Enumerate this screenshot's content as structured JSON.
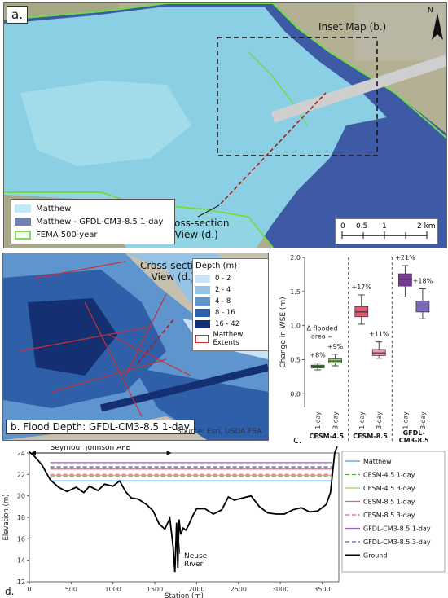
{
  "panel_a": {
    "label": "a.",
    "inset_label": "Inset Map (b.)",
    "cross_section_label_1": "Cross-section",
    "cross_section_label_2": "View (d.)",
    "north": "N",
    "legend": [
      {
        "label": "Matthew",
        "color": "#bfe9f5"
      },
      {
        "label": "Matthew - GFDL-CM3-8.5 1-day",
        "color": "#6f7fae"
      },
      {
        "label": "FEMA 500-year",
        "color": "#7be05a"
      }
    ],
    "scale": {
      "ticks": [
        "0",
        "0.5",
        "1",
        "2 km"
      ]
    },
    "map_colors": {
      "matthew": "#8fd6e8",
      "gfdl": "#3f5aa5",
      "fema": "#6fdc4c",
      "land": "#b6b395"
    }
  },
  "panel_b": {
    "label": "b. Flood Depth: GFDL-CM3-8.5 1-day",
    "cross_section_label_1": "Cross-section",
    "cross_section_label_2": "View (d.)",
    "source": "Source: Esri, USDA FSA",
    "legend_title": "Depth (m)",
    "legend": [
      {
        "label": "0 - 2",
        "color": "#c9e5f5"
      },
      {
        "label": "2 - 4",
        "color": "#94c3e6"
      },
      {
        "label": "4 - 8",
        "color": "#5f95cf"
      },
      {
        "label": "8 - 16",
        "color": "#2f5fa8"
      },
      {
        "label": "16 - 42",
        "color": "#142f72"
      },
      {
        "label": "Matthew Extents",
        "color": "#c83232"
      }
    ]
  },
  "chart_data": [
    {
      "type": "box",
      "panel_label": "c.",
      "ylabel": "Change in WSE (m)",
      "ylim": [
        -0.2,
        2.0
      ],
      "yticks": [
        "0.0",
        "0.5",
        "1.0",
        "1.5",
        "2.0"
      ],
      "annotation": [
        "Δ flooded",
        "area ="
      ],
      "groups": [
        {
          "name": "CESM-4.5",
          "boxes": [
            {
              "x": "1-day",
              "min": 0.35,
              "q1": 0.38,
              "median": 0.4,
              "q3": 0.42,
              "max": 0.45,
              "pct": "+8%",
              "color": "#4f9a3c"
            },
            {
              "x": "3-day",
              "min": 0.41,
              "q1": 0.45,
              "median": 0.48,
              "q3": 0.51,
              "max": 0.58,
              "pct": "+9%",
              "color": "#8fcf6a"
            }
          ]
        },
        {
          "name": "CESM-8.5",
          "boxes": [
            {
              "x": "1-day",
              "min": 1.02,
              "q1": 1.13,
              "median": 1.2,
              "q3": 1.28,
              "max": 1.45,
              "pct": "+17%",
              "color": "#e45c73"
            },
            {
              "x": "3-day",
              "min": 0.52,
              "q1": 0.56,
              "median": 0.6,
              "q3": 0.65,
              "max": 0.76,
              "pct": "+11%",
              "color": "#f19ab0"
            }
          ]
        },
        {
          "name": "GFDL-CM3-8.5",
          "boxes": [
            {
              "x": "1-day",
              "min": 1.42,
              "q1": 1.58,
              "median": 1.68,
              "q3": 1.76,
              "max": 1.88,
              "pct": "+21%",
              "color": "#7b3a9a"
            },
            {
              "x": "3-day",
              "min": 1.1,
              "q1": 1.2,
              "median": 1.29,
              "q3": 1.36,
              "max": 1.54,
              "pct": "+18%",
              "color": "#7a6ab8"
            }
          ]
        }
      ]
    },
    {
      "type": "line",
      "panel_label": "d.",
      "title_annotation": "Seymour Johnson AFB",
      "river_annotation": [
        "Neuse",
        "River"
      ],
      "xlabel": "Station (m)",
      "ylabel": "Elevation (m)",
      "xlim": [
        0,
        3700
      ],
      "ylim": [
        12,
        24
      ],
      "xticks": [
        0,
        500,
        1000,
        1500,
        2000,
        2500,
        3000,
        3500
      ],
      "yticks": [
        12,
        14,
        16,
        18,
        20,
        22,
        24
      ],
      "series": [
        {
          "name": "Matthew",
          "value": 21.4,
          "color": "#4b9bd6",
          "dash": ""
        },
        {
          "name": "CESM-4.5 1-day",
          "value": 21.8,
          "color": "#5fa83e",
          "dash": "5,3"
        },
        {
          "name": "CESM-4.5 3-day",
          "value": 21.9,
          "color": "#90cf6a",
          "dash": ""
        },
        {
          "name": "CESM-8.5 1-day",
          "value": 22.5,
          "color": "#e8607a",
          "dash": ""
        },
        {
          "name": "CESM-8.5 3-day",
          "value": 22.0,
          "color": "#e8607a",
          "dash": "5,3"
        },
        {
          "name": "GFDL-CM3-8.5 1-day",
          "value": 23.1,
          "color": "#9a5fc4",
          "dash": ""
        },
        {
          "name": "GFDL-CM3-8.5 3-day",
          "value": 22.7,
          "color": "#6a54a8",
          "dash": "5,3"
        },
        {
          "name": "Ground",
          "color": "#000000",
          "dash": "",
          "x": [
            0,
            60,
            150,
            250,
            350,
            450,
            560,
            650,
            720,
            820,
            900,
            1000,
            1080,
            1150,
            1220,
            1300,
            1400,
            1480,
            1550,
            1620,
            1680,
            1720,
            1740,
            1760,
            1775,
            1790,
            1810,
            1840,
            1870,
            1900,
            1950,
            2000,
            2100,
            2200,
            2300,
            2380,
            2450,
            2550,
            2650,
            2750,
            2850,
            2950,
            3050,
            3150,
            3250,
            3350,
            3450,
            3550,
            3600,
            3650,
            3680
          ],
          "y": [
            24.1,
            23.7,
            22.9,
            21.5,
            20.8,
            20.4,
            20.8,
            20.3,
            20.9,
            20.5,
            21.1,
            20.9,
            21.4,
            20.4,
            19.8,
            19.7,
            19.2,
            18.6,
            17.4,
            16.9,
            17.9,
            15.2,
            12.9,
            17.5,
            13.3,
            17.8,
            16.4,
            17.0,
            16.8,
            17.2,
            18.1,
            18.8,
            18.8,
            18.3,
            18.7,
            19.9,
            19.6,
            19.8,
            20.0,
            19.0,
            18.4,
            18.3,
            18.3,
            18.7,
            18.9,
            18.5,
            18.6,
            19.2,
            20.3,
            24.0,
            24.6
          ]
        }
      ]
    }
  ]
}
